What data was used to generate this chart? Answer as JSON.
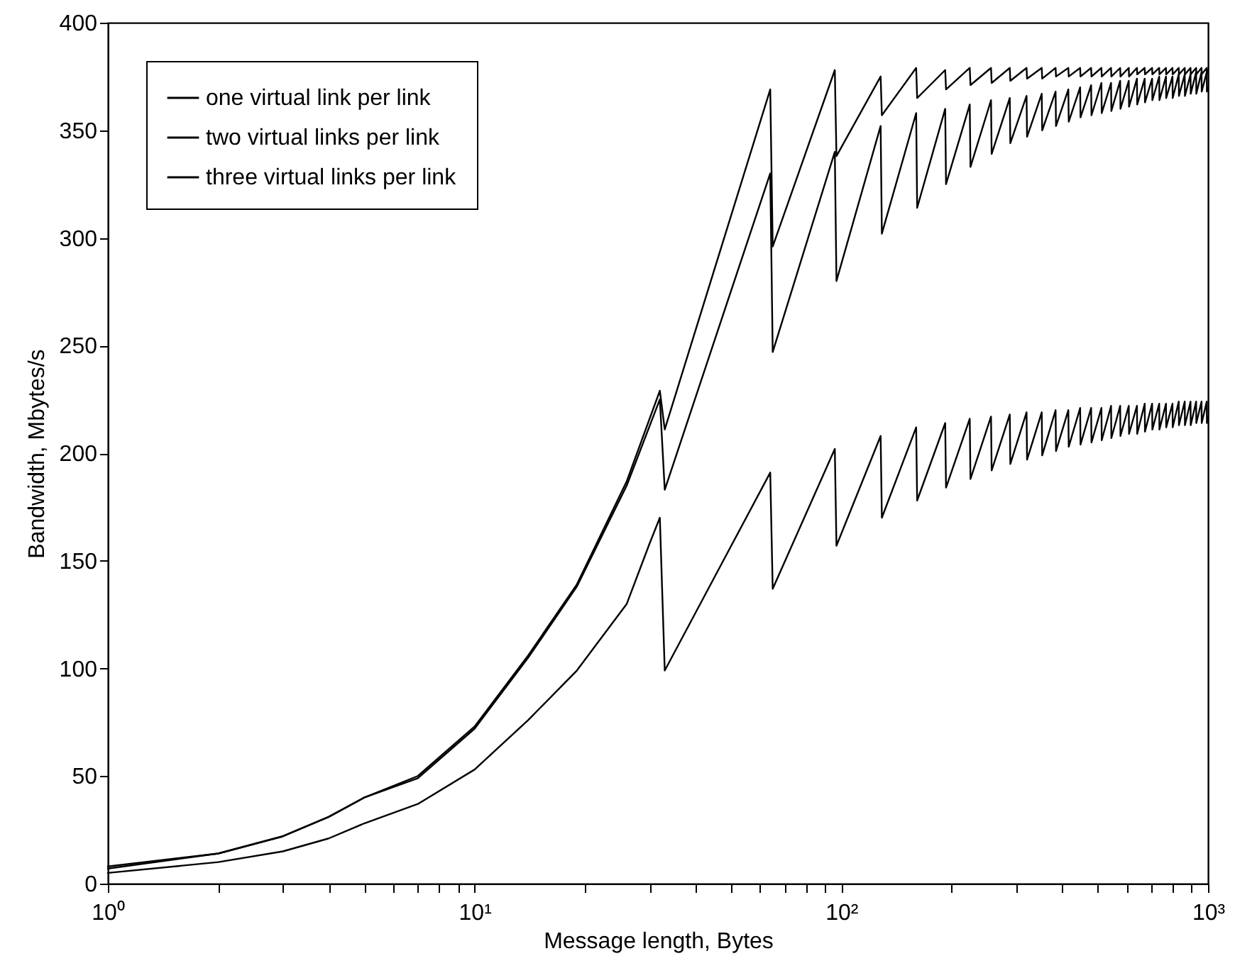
{
  "chart_data": {
    "type": "line",
    "xlabel": "Message length, Bytes",
    "ylabel": "Bandwidth, Mbytes/s",
    "log": "x",
    "grid": false,
    "legend": "top left",
    "marker": "none",
    "line_style": "solid",
    "xlim": [
      1,
      1000
    ],
    "ylim": [
      0,
      400
    ],
    "xticks": [
      {
        "value": 1,
        "label": "10⁰"
      },
      {
        "value": 2,
        "label": null
      },
      {
        "value": 3,
        "label": null
      },
      {
        "value": 4,
        "label": null
      },
      {
        "value": 5,
        "label": null
      },
      {
        "value": 6,
        "label": null
      },
      {
        "value": 7,
        "label": null
      },
      {
        "value": 8,
        "label": null
      },
      {
        "value": 9,
        "label": null
      },
      {
        "value": 10,
        "label": "10¹"
      },
      {
        "value": 20,
        "label": null
      },
      {
        "value": 30,
        "label": null
      },
      {
        "value": 40,
        "label": null
      },
      {
        "value": 50,
        "label": null
      },
      {
        "value": 60,
        "label": null
      },
      {
        "value": 70,
        "label": null
      },
      {
        "value": 80,
        "label": null
      },
      {
        "value": 90,
        "label": null
      },
      {
        "value": 100,
        "label": "10²"
      },
      {
        "value": 200,
        "label": null
      },
      {
        "value": 300,
        "label": null
      },
      {
        "value": 400,
        "label": null
      },
      {
        "value": 500,
        "label": null
      },
      {
        "value": 600,
        "label": null
      },
      {
        "value": 700,
        "label": null
      },
      {
        "value": 800,
        "label": null
      },
      {
        "value": 900,
        "label": null
      },
      {
        "value": 1000,
        "label": "10³"
      }
    ],
    "yticks": [
      0,
      50,
      100,
      150,
      200,
      250,
      300,
      350,
      400
    ],
    "series": [
      {
        "name": "one virtual link per link",
        "color": "#000000",
        "x": [
          1,
          2,
          3,
          4,
          5,
          7,
          10,
          14,
          19,
          26,
          30,
          32,
          33,
          64,
          65,
          96,
          97,
          128,
          129,
          160,
          161,
          192,
          193,
          224,
          225,
          256,
          257,
          288,
          289,
          320,
          321,
          352,
          353,
          384,
          385,
          416,
          417,
          448,
          449,
          480,
          481,
          512,
          513,
          544,
          545,
          576,
          577,
          608,
          609,
          640,
          641,
          672,
          673,
          704,
          705,
          736,
          737,
          768,
          769,
          800,
          801,
          832,
          833,
          864,
          865,
          896,
          897,
          928,
          929,
          960,
          961,
          992,
          993,
          1000
        ],
        "values": [
          5,
          10,
          15,
          21,
          28,
          37,
          53,
          76,
          99,
          130,
          158,
          170,
          99,
          191,
          137,
          202,
          157,
          208,
          170,
          212,
          178,
          214,
          184,
          216,
          188,
          217,
          192,
          218,
          195,
          219,
          197,
          219,
          199,
          220,
          201,
          220,
          203,
          221,
          204,
          221,
          205,
          221,
          206,
          222,
          207,
          222,
          208,
          222,
          209,
          222,
          209,
          223,
          210,
          223,
          211,
          223,
          211,
          223,
          212,
          223,
          212,
          224,
          213,
          224,
          213,
          224,
          213,
          224,
          214,
          224,
          214,
          224,
          214,
          217
        ]
      },
      {
        "name": "two virtual links per link",
        "color": "#000000",
        "x": [
          1,
          2,
          3,
          4,
          5,
          7,
          10,
          14,
          19,
          26,
          32,
          33,
          64,
          65,
          96,
          97,
          128,
          129,
          160,
          161,
          192,
          193,
          224,
          225,
          256,
          257,
          288,
          289,
          320,
          321,
          352,
          353,
          384,
          385,
          416,
          417,
          448,
          449,
          480,
          481,
          512,
          513,
          544,
          545,
          576,
          577,
          608,
          609,
          640,
          641,
          672,
          673,
          704,
          705,
          736,
          737,
          768,
          769,
          800,
          801,
          832,
          833,
          864,
          865,
          896,
          897,
          928,
          929,
          960,
          961,
          992,
          993,
          1000
        ],
        "values": [
          7,
          14,
          22,
          31,
          40,
          49,
          72,
          105,
          138,
          185,
          225,
          183,
          330,
          247,
          340,
          280,
          352,
          302,
          358,
          314,
          360,
          325,
          362,
          333,
          364,
          339,
          365,
          344,
          366,
          347,
          367,
          350,
          368,
          352,
          369,
          354,
          370,
          356,
          371,
          357,
          372,
          358,
          372,
          359,
          373,
          360,
          373,
          361,
          374,
          362,
          374,
          363,
          374,
          364,
          375,
          364,
          375,
          365,
          375,
          365,
          376,
          366,
          376,
          366,
          376,
          367,
          377,
          367,
          377,
          368,
          377,
          368,
          370
        ]
      },
      {
        "name": "three virtual links per link",
        "color": "#000000",
        "x": [
          1,
          2,
          3,
          4,
          5,
          7,
          10,
          14,
          19,
          26,
          32,
          33,
          64,
          65,
          96,
          97,
          128,
          129,
          160,
          161,
          192,
          193,
          224,
          225,
          256,
          257,
          288,
          289,
          320,
          321,
          352,
          353,
          384,
          385,
          416,
          417,
          448,
          449,
          480,
          481,
          512,
          513,
          544,
          545,
          576,
          577,
          608,
          609,
          640,
          641,
          672,
          673,
          704,
          705,
          736,
          737,
          768,
          769,
          800,
          801,
          832,
          833,
          864,
          865,
          896,
          897,
          928,
          929,
          960,
          961,
          992,
          993,
          1000
        ],
        "values": [
          8,
          14,
          22,
          31,
          40,
          50,
          73,
          106,
          139,
          187,
          229,
          211,
          369,
          296,
          378,
          338,
          375,
          357,
          379,
          365,
          378,
          369,
          379,
          371,
          379,
          372,
          379,
          373,
          379,
          374,
          379,
          374,
          379,
          375,
          379,
          375,
          379,
          375,
          379,
          375,
          379,
          375,
          379,
          375,
          379,
          375,
          379,
          375,
          379,
          376,
          379,
          376,
          379,
          376,
          379,
          376,
          379,
          376,
          379,
          376,
          379,
          376,
          379,
          376,
          379,
          376,
          379,
          376,
          379,
          376,
          379,
          376,
          378
        ]
      }
    ]
  }
}
